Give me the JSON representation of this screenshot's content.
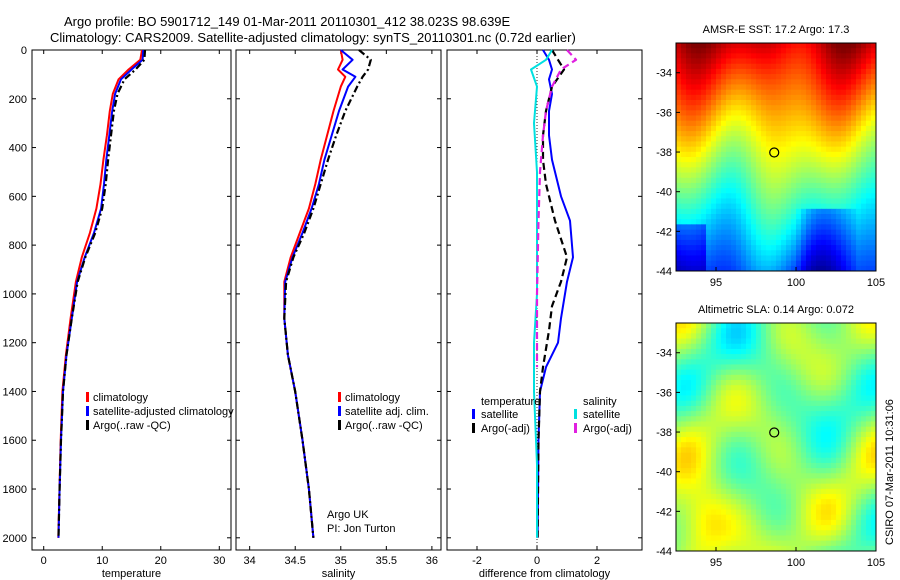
{
  "header": {
    "line1": "Argo profile: BO 5901712_149 01-Mar-2011 20110301_412 38.023S 98.639E",
    "line2": "Climatology: CARS2009. Satellite-adjusted climatology: synTS_20110301.nc (0.72d earlier)"
  },
  "side_label": "CSIRO 07-Mar-2011 10:31:06",
  "colors": {
    "climatology": "#ff0000",
    "satellite": "#0000ff",
    "argo": "#000000",
    "satellite_salinity": "#00e0e0",
    "argo_salinity": "#e020e0"
  },
  "chart_data": [
    {
      "type": "line",
      "id": "temperature",
      "xlabel": "temperature",
      "xlim": [
        -2,
        32
      ],
      "ylim": [
        2050,
        0
      ],
      "y_reversed": true,
      "xticks": [
        0,
        10,
        20,
        30
      ],
      "yticks": [
        0,
        200,
        400,
        600,
        800,
        1000,
        1200,
        1400,
        1600,
        1800,
        2000
      ],
      "legend": [
        "climatology",
        "satellite-adjusted climatology",
        "Argo(..raw -QC)"
      ],
      "series": [
        {
          "name": "climatology",
          "color": "#ff0000",
          "style": "solid",
          "x": [
            16.8,
            16.5,
            14.5,
            12.8,
            11.8,
            11.3,
            10.8,
            10.2,
            9.7,
            9.0,
            7.9,
            6.5,
            5.5,
            4.6,
            3.8,
            3.2,
            2.9,
            2.7,
            2.5
          ],
          "y": [
            0,
            40,
            80,
            120,
            180,
            250,
            350,
            450,
            550,
            650,
            750,
            850,
            950,
            1100,
            1250,
            1400,
            1600,
            1800,
            2000
          ]
        },
        {
          "name": "satellite-adjusted climatology",
          "color": "#0000ff",
          "style": "solid",
          "x": [
            17.0,
            16.9,
            15.0,
            13.2,
            12.2,
            11.7,
            11.2,
            10.7,
            10.3,
            9.8,
            8.6,
            7.0,
            5.7,
            4.8,
            3.9,
            3.3,
            2.95,
            2.72,
            2.52
          ],
          "y": [
            0,
            40,
            80,
            120,
            180,
            250,
            350,
            450,
            550,
            650,
            750,
            850,
            950,
            1100,
            1250,
            1400,
            1600,
            1800,
            2000
          ]
        },
        {
          "name": "Argo(..raw -QC)",
          "color": "#000000",
          "style": "dashdot",
          "x": [
            17.3,
            17.2,
            15.7,
            13.8,
            12.6,
            12.0,
            11.5,
            11.0,
            10.6,
            10.0,
            8.8,
            7.1,
            5.8,
            4.8,
            3.9,
            3.3,
            2.95,
            2.72,
            2.52
          ],
          "y": [
            0,
            40,
            80,
            120,
            180,
            250,
            350,
            450,
            550,
            650,
            750,
            850,
            950,
            1100,
            1250,
            1400,
            1600,
            1800,
            2000
          ]
        }
      ]
    },
    {
      "type": "line",
      "id": "salinity",
      "xlabel": "salinity",
      "xlim": [
        33.85,
        36.1
      ],
      "ylim": [
        2050,
        0
      ],
      "y_reversed": true,
      "xticks": [
        34,
        34.5,
        35,
        35.5,
        36
      ],
      "xtick_labels": [
        "34",
        "34.5",
        "35",
        "35.5",
        "36"
      ],
      "legend": [
        "climatology",
        "satellite adj. clim.",
        "Argo(..raw -QC)"
      ],
      "annotation": [
        "Argo UK",
        "PI: Jon Turton"
      ],
      "series": [
        {
          "name": "climatology",
          "color": "#ff0000",
          "style": "solid",
          "x": [
            35.0,
            35.02,
            34.97,
            35.05,
            35.0,
            34.92,
            34.85,
            34.78,
            34.72,
            34.65,
            34.55,
            34.45,
            34.38,
            34.38,
            34.42,
            34.5,
            34.58,
            34.65,
            34.7
          ],
          "y": [
            0,
            40,
            80,
            110,
            150,
            250,
            350,
            450,
            550,
            650,
            750,
            850,
            950,
            1100,
            1250,
            1400,
            1600,
            1800,
            2000
          ]
        },
        {
          "name": "satellite adj. clim.",
          "color": "#0000ff",
          "style": "solid",
          "x": [
            35.0,
            35.13,
            35.02,
            35.16,
            35.08,
            34.98,
            34.9,
            34.82,
            34.76,
            34.68,
            34.58,
            34.47,
            34.39,
            34.38,
            34.42,
            34.5,
            34.58,
            34.65,
            34.7
          ],
          "y": [
            0,
            40,
            80,
            110,
            150,
            250,
            350,
            450,
            550,
            650,
            750,
            850,
            950,
            1100,
            1250,
            1400,
            1600,
            1800,
            2000
          ]
        },
        {
          "name": "Argo(..raw -QC)",
          "color": "#000000",
          "style": "dashdot",
          "x": [
            35.2,
            35.33,
            35.3,
            35.24,
            35.18,
            35.05,
            34.95,
            34.86,
            34.78,
            34.7,
            34.6,
            34.48,
            34.4,
            34.38,
            34.42,
            34.5,
            34.58,
            34.65,
            34.7
          ],
          "y": [
            0,
            40,
            80,
            110,
            150,
            250,
            350,
            450,
            550,
            650,
            750,
            850,
            950,
            1100,
            1250,
            1400,
            1600,
            1800,
            2000
          ]
        }
      ]
    },
    {
      "type": "line",
      "id": "difference",
      "xlabel": "difference from climatology",
      "xlim": [
        -3.0,
        3.5
      ],
      "ylim": [
        2050,
        0
      ],
      "y_reversed": true,
      "xticks": [
        -2,
        0,
        2
      ],
      "legend_headers": [
        "temperature",
        "salinity"
      ],
      "legend": [
        "satellite",
        "Argo(-adj)",
        "satellite",
        "Argo(-adj)"
      ],
      "series": [
        {
          "name": "satellite",
          "group": "temperature",
          "color": "#0000ff",
          "style": "solid",
          "x": [
            0.2,
            0.4,
            0.5,
            0.4,
            0.5,
            0.4,
            0.4,
            0.5,
            0.8,
            1.1,
            1.2,
            1.0,
            0.8,
            0.7,
            0.3,
            0.1,
            0.05,
            0.02
          ],
          "y": [
            0,
            40,
            80,
            120,
            180,
            250,
            350,
            450,
            600,
            700,
            850,
            950,
            1100,
            1200,
            1300,
            1400,
            1600,
            2000
          ]
        },
        {
          "name": "Argo(-adj)",
          "group": "temperature",
          "color": "#000000",
          "style": "dashed",
          "x": [
            0.5,
            0.7,
            0.9,
            0.5,
            0.3,
            0.2,
            0.2,
            0.3,
            0.6,
            1.0,
            0.8,
            0.5,
            0.4,
            0.2,
            0.1,
            0.05,
            0.02
          ],
          "y": [
            0,
            40,
            80,
            150,
            250,
            350,
            450,
            550,
            700,
            850,
            950,
            1050,
            1150,
            1300,
            1400,
            1600,
            2000
          ]
        },
        {
          "name": "satellite",
          "group": "salinity",
          "color": "#00e0e0",
          "style": "solid",
          "x": [
            0.5,
            0.3,
            -0.2,
            0.0,
            -0.1,
            0.0,
            0.0,
            0.0,
            -0.1,
            -0.1,
            0.0,
            0.0
          ],
          "y": [
            0,
            40,
            80,
            150,
            300,
            500,
            800,
            1000,
            1200,
            1400,
            1700,
            2000
          ]
        },
        {
          "name": "Argo(-adj)",
          "group": "salinity",
          "color": "#e020e0",
          "style": "dashed",
          "x": [
            1.0,
            1.3,
            0.8,
            0.5,
            0.3,
            0.2,
            0.1,
            0.05,
            0.0,
            0.0
          ],
          "y": [
            0,
            40,
            80,
            150,
            250,
            350,
            500,
            700,
            1000,
            1300
          ]
        }
      ]
    },
    {
      "type": "heatmap",
      "id": "sst-map",
      "title": "AMSR-E SST: 17.2 Argo: 17.3",
      "xlim": [
        92.5,
        105
      ],
      "ylim": [
        -44,
        -32.5
      ],
      "xticks": [
        95,
        100,
        105
      ],
      "yticks": [
        -34,
        -36,
        -38,
        -40,
        -42,
        -44
      ],
      "marker": {
        "lon": 98.639,
        "lat": -38.023
      },
      "palette": "jet",
      "value_range": [
        14,
        22
      ]
    },
    {
      "type": "heatmap",
      "id": "sla-map",
      "title": "Altimetric SLA: 0.14 Argo: 0.072",
      "xlim": [
        92.5,
        105
      ],
      "ylim": [
        -44,
        -32.5
      ],
      "xticks": [
        95,
        100,
        105
      ],
      "yticks": [
        -34,
        -36,
        -38,
        -40,
        -42,
        -44
      ],
      "marker": {
        "lon": 98.639,
        "lat": -38.023
      },
      "palette": "jet"
    }
  ]
}
